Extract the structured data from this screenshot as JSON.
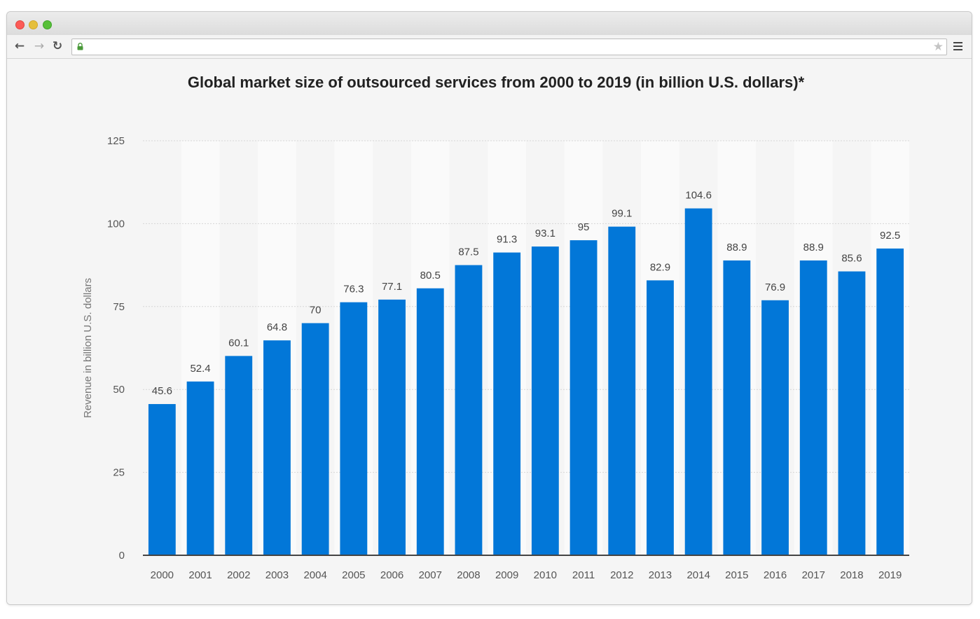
{
  "browser": {
    "address_url": ""
  },
  "colors": {
    "bar": "#0277d8",
    "axis": "#444444",
    "grid": "#d6d6d6",
    "band": "#fafafa"
  },
  "chart_data": {
    "type": "bar",
    "title": "Global market size of outsourced services from 2000 to 2019 (in billion U.S. dollars)*",
    "xlabel": "",
    "ylabel": "Revenue in billion U.S. dollars",
    "ylim": [
      0,
      125
    ],
    "yticks": [
      0,
      25,
      50,
      75,
      100,
      125
    ],
    "grid": true,
    "legend": "none",
    "categories": [
      "2000",
      "2001",
      "2002",
      "2003",
      "2004",
      "2005",
      "2006",
      "2007",
      "2008",
      "2009",
      "2010",
      "2011",
      "2012",
      "2013",
      "2014",
      "2015",
      "2016",
      "2017",
      "2018",
      "2019"
    ],
    "values": [
      45.6,
      52.4,
      60.1,
      64.8,
      70,
      76.3,
      77.1,
      80.5,
      87.5,
      91.3,
      93.1,
      95,
      99.1,
      82.9,
      104.6,
      88.9,
      76.9,
      88.9,
      85.6,
      92.5
    ],
    "data_labels": [
      "45.6",
      "52.4",
      "60.1",
      "64.8",
      "70",
      "76.3",
      "77.1",
      "80.5",
      "87.5",
      "91.3",
      "93.1",
      "95",
      "99.1",
      "82.9",
      "104.6",
      "88.9",
      "76.9",
      "88.9",
      "85.6",
      "92.5"
    ]
  }
}
